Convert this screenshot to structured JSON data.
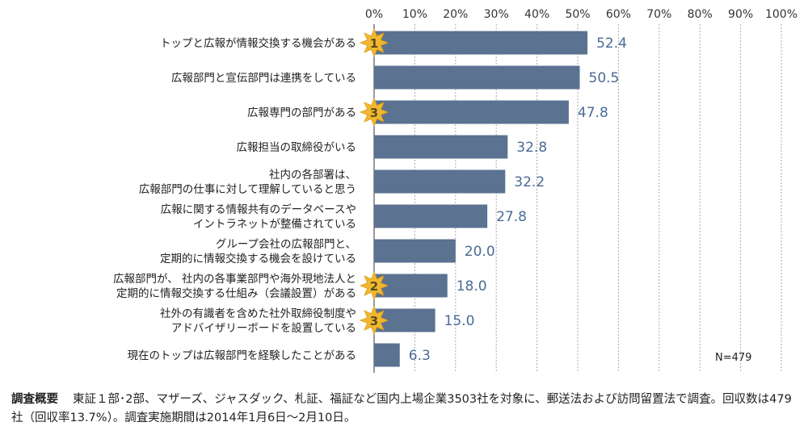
{
  "chart_data": {
    "type": "bar",
    "orientation": "horizontal",
    "categories": [
      [
        "トップと広報が情報交換する機会がある"
      ],
      [
        "広報部門と宣伝部門は連携をしている"
      ],
      [
        "広報専門の部門がある"
      ],
      [
        "広報担当の取締役がいる"
      ],
      [
        "社内の各部署は、",
        "広報部門の仕事に対して理解していると思う"
      ],
      [
        "広報に関する情報共有のデータベースや",
        "イントラネットが整備されている"
      ],
      [
        "グループ会社の広報部門と、",
        "定期的に情報交換する機会を設けている"
      ],
      [
        "広報部門が、 社内の各事業部門や海外現地法人と",
        "定期的に情報交換する仕組み（会議設置）がある"
      ],
      [
        "社外の有識者を含めた社外取締役制度や",
        "アドバイザリーボードを設置している"
      ],
      [
        "現在のトップは広報部門を経験したことがある"
      ]
    ],
    "values": [
      52.4,
      50.5,
      47.8,
      32.8,
      32.2,
      27.8,
      20.0,
      18.0,
      15.0,
      6.3
    ],
    "value_labels": [
      "52.4",
      "50.5",
      "47.8",
      "32.8",
      "32.2",
      "27.8",
      "20.0",
      "18.0",
      "15.0",
      "6.3"
    ],
    "rank_badges": [
      {
        "index": 0,
        "label": "1"
      },
      {
        "index": 2,
        "label": "3"
      },
      {
        "index": 7,
        "label": "2"
      },
      {
        "index": 8,
        "label": "3"
      }
    ],
    "xlim": [
      0,
      100
    ],
    "x_ticks": [
      0,
      10,
      20,
      30,
      40,
      50,
      60,
      70,
      80,
      90,
      100
    ],
    "x_tick_labels": [
      "0%",
      "10%",
      "20%",
      "30%",
      "40%",
      "50%",
      "60%",
      "70%",
      "80%",
      "90%",
      "100%"
    ],
    "grid": true,
    "note": "N=479",
    "colors": {
      "bar": "#5b7291",
      "value_text": "#4a6b94",
      "grid": "#aaaaaa",
      "badge": "#f0b830"
    }
  },
  "footnote": {
    "heading": "調査概要",
    "text": "東証１部･2部、マザーズ、ジャスダック、札証、福証など国内上場企業3503社を対象に、郵送法および訪問留置法で調査。回収数は479社（回収率13.7%）。調査実施期間は2014年1月6日～2月10日。"
  }
}
